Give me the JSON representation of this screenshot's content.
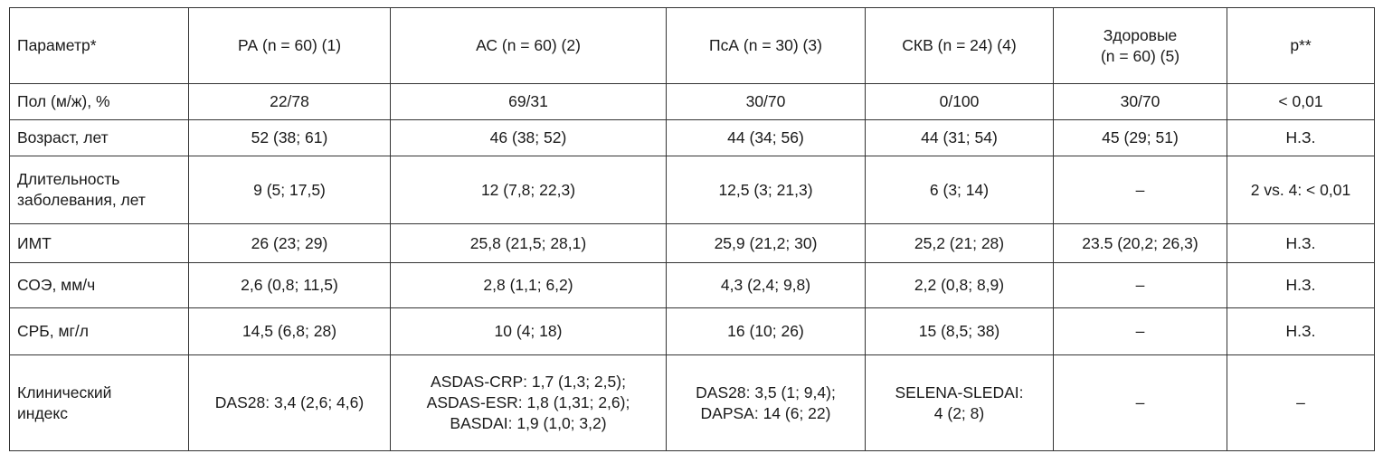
{
  "table": {
    "header": [
      "Параметр*",
      "РА (n = 60) (1)",
      "АС (n = 60) (2)",
      "ПсА (n = 30) (3)",
      "СКВ (n = 24) (4)",
      "Здоровые\n(n = 60) (5)",
      "p**"
    ],
    "rows": [
      [
        "Пол (м/ж), %",
        "22/78",
        "69/31",
        "30/70",
        "0/100",
        "30/70",
        "< 0,01"
      ],
      [
        "Возраст, лет",
        "52 (38; 61)",
        "46 (38; 52)",
        "44 (34; 56)",
        "44 (31; 54)",
        "45 (29; 51)",
        "Н.З."
      ],
      [
        "Длительность\nзаболевания, лет",
        "9 (5; 17,5)",
        "12 (7,8; 22,3)",
        "12,5 (3; 21,3)",
        "6 (3; 14)",
        "–",
        "2 vs. 4: < 0,01"
      ],
      [
        "ИМТ",
        "26 (23; 29)",
        "25,8 (21,5; 28,1)",
        "25,9 (21,2; 30)",
        "25,2 (21; 28)",
        "23.5 (20,2; 26,3)",
        "Н.З."
      ],
      [
        "СОЭ, мм/ч",
        "2,6 (0,8; 11,5)",
        "2,8 (1,1; 6,2)",
        "4,3 (2,4; 9,8)",
        "2,2 (0,8; 8,9)",
        "–",
        "Н.З."
      ],
      [
        "СРБ, мг/л",
        "14,5 (6,8; 28)",
        "10 (4; 18)",
        "16 (10; 26)",
        "15 (8,5; 38)",
        "–",
        "Н.З."
      ],
      [
        "Клинический\nиндекс",
        "DAS28: 3,4 (2,6; 4,6)",
        "ASDAS-CRP: 1,7 (1,3; 2,5);\nASDAS-ESR: 1,8 (1,31; 2,6);\nBASDAI: 1,9 (1,0; 3,2)",
        "DAS28: 3,5 (1; 9,4);\nDAPSA: 14 (6; 22)",
        "SELENA-SLEDAI:\n4 (2; 8)",
        "–",
        "–"
      ]
    ]
  }
}
